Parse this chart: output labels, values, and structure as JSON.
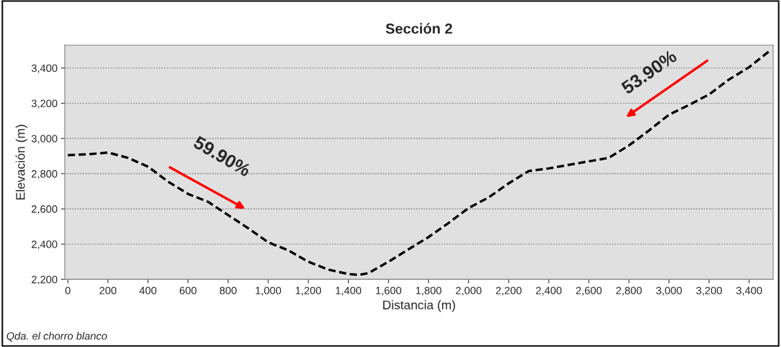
{
  "chart_data": {
    "type": "line",
    "title": "Sección 2",
    "xlabel": "Distancia (m)",
    "ylabel": "Elevación (m)",
    "x": [
      0,
      100,
      200,
      300,
      400,
      500,
      600,
      700,
      800,
      900,
      1000,
      1100,
      1200,
      1300,
      1400,
      1450,
      1500,
      1600,
      1700,
      1800,
      1900,
      2000,
      2100,
      2200,
      2300,
      2400,
      2500,
      2600,
      2700,
      2800,
      2900,
      3000,
      3100,
      3200,
      3300,
      3400,
      3500
    ],
    "series": [
      {
        "color": "#000000",
        "values": [
          2905,
          2910,
          2920,
          2890,
          2840,
          2755,
          2685,
          2640,
          2565,
          2490,
          2410,
          2365,
          2300,
          2255,
          2230,
          2225,
          2235,
          2300,
          2370,
          2440,
          2520,
          2605,
          2665,
          2745,
          2815,
          2830,
          2850,
          2870,
          2890,
          2960,
          3045,
          3135,
          3190,
          3250,
          3335,
          3405,
          3495
        ]
      }
    ],
    "line_style": "dashed",
    "marker": "none",
    "grid": "y",
    "legend": false,
    "xlim": [
      -15,
      3520
    ],
    "ylim": [
      2200,
      3530
    ],
    "xticks": [
      {
        "value": 0,
        "label": "0"
      },
      {
        "value": 200,
        "label": "200"
      },
      {
        "value": 400,
        "label": "400"
      },
      {
        "value": 600,
        "label": "600"
      },
      {
        "value": 800,
        "label": "800"
      },
      {
        "value": 1000,
        "label": "1,000"
      },
      {
        "value": 1200,
        "label": "1,200"
      },
      {
        "value": 1400,
        "label": "1,400"
      },
      {
        "value": 1600,
        "label": "1,600"
      },
      {
        "value": 1800,
        "label": "1,800"
      },
      {
        "value": 2000,
        "label": "2,000"
      },
      {
        "value": 2200,
        "label": "2,200"
      },
      {
        "value": 2400,
        "label": "2,400"
      },
      {
        "value": 2600,
        "label": "2,600"
      },
      {
        "value": 2800,
        "label": "2,800"
      },
      {
        "value": 3000,
        "label": "3,000"
      },
      {
        "value": 3200,
        "label": "3,200"
      },
      {
        "value": 3400,
        "label": "3,400"
      }
    ],
    "yticks": [
      {
        "value": 2200,
        "label": "2,200"
      },
      {
        "value": 2400,
        "label": "2,400"
      },
      {
        "value": 2600,
        "label": "2,600"
      },
      {
        "value": 2800,
        "label": "2,800"
      },
      {
        "value": 3000,
        "label": "3,000"
      },
      {
        "value": 3200,
        "label": "3,200"
      },
      {
        "value": 3400,
        "label": "3,400"
      }
    ],
    "annotations": [
      "59.90%",
      "53.90%",
      "Qda. el chorro blanco"
    ]
  }
}
